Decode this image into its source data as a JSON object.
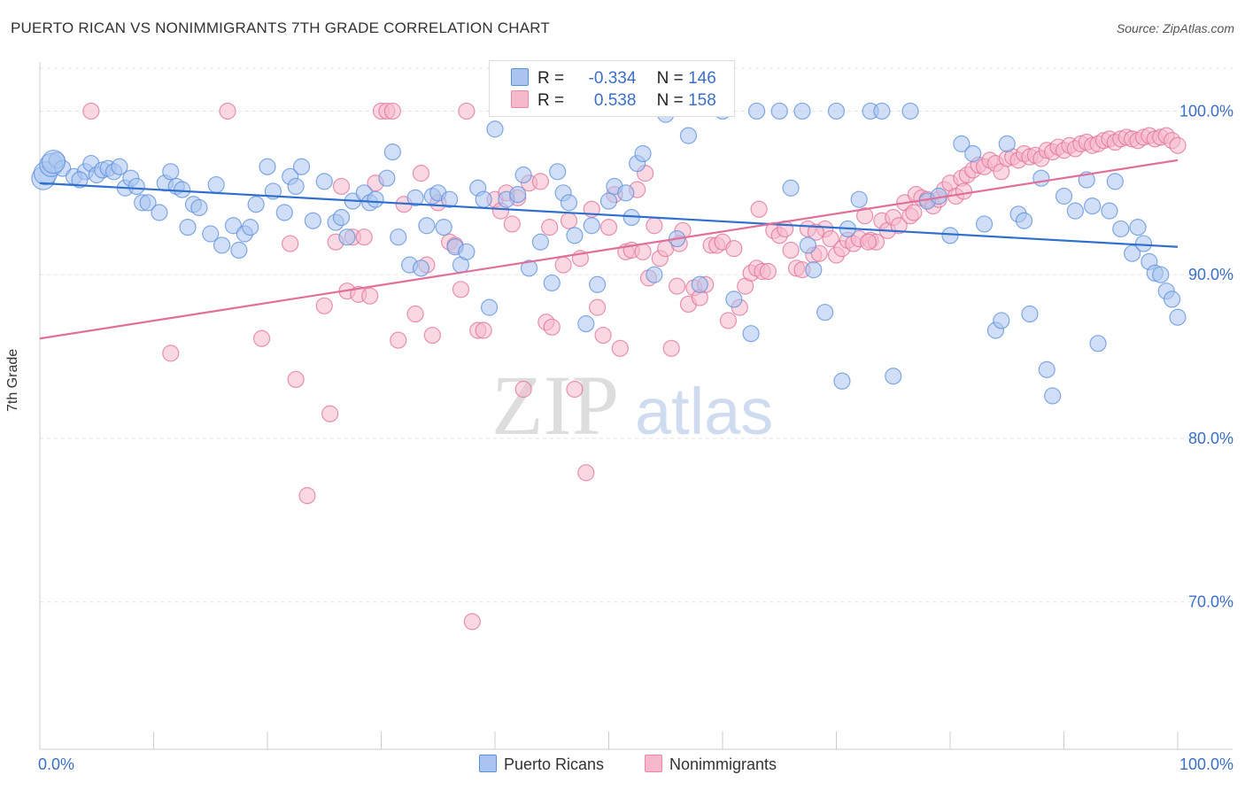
{
  "title": "PUERTO RICAN VS NONIMMIGRANTS 7TH GRADE CORRELATION CHART",
  "source": "Source: ZipAtlas.com",
  "watermark": {
    "zip": "ZIP",
    "atlas": "atlas"
  },
  "legend": {
    "r_label": "R =",
    "n_label": "N =",
    "series": [
      {
        "r": "-0.334",
        "n": "146",
        "color": "#a9c4f0",
        "border": "#5b8fd9"
      },
      {
        "r": "0.538",
        "n": "158",
        "color": "#f6b8cb",
        "border": "#e687a7"
      }
    ]
  },
  "bottom_legend": [
    "Puerto Ricans",
    "Nonimmigrants"
  ],
  "chart_data": {
    "type": "scatter",
    "title": "PUERTO RICAN VS NONIMMIGRANTS 7TH GRADE CORRELATION CHART",
    "xlabel": "",
    "ylabel": "7th Grade",
    "x_tick_labels": [
      "0.0%",
      "100.0%"
    ],
    "y_tick_labels": [
      "100.0%",
      "90.0%",
      "80.0%",
      "70.0%"
    ],
    "y_ticks": [
      100,
      90,
      80,
      70
    ],
    "xlim": [
      0,
      100
    ],
    "ylim": [
      61,
      103
    ],
    "grid": true,
    "legend_placement": "top-center",
    "series": [
      {
        "name": "Puerto Ricans",
        "color": "#5b8fd9",
        "fill": "#a9c4f0",
        "trend": [
          [
            0,
            95.6
          ],
          [
            100,
            91.7
          ]
        ],
        "points": [
          [
            0.3,
            95.9
          ],
          [
            0.5,
            96.2
          ],
          [
            1.0,
            96.7
          ],
          [
            1.5,
            97.0
          ],
          [
            2.0,
            96.5
          ],
          [
            3.0,
            96.0
          ],
          [
            4.0,
            96.3
          ],
          [
            4.5,
            96.8
          ],
          [
            5.0,
            96.1
          ],
          [
            5.5,
            96.4
          ],
          [
            6.0,
            96.5
          ],
          [
            6.5,
            96.3
          ],
          [
            7.0,
            96.6
          ],
          [
            7.5,
            95.3
          ],
          [
            8.0,
            95.9
          ],
          [
            8.5,
            95.4
          ],
          [
            9.0,
            94.4
          ],
          [
            9.5,
            94.4
          ],
          [
            10.5,
            93.8
          ],
          [
            11.0,
            95.6
          ],
          [
            11.5,
            96.3
          ],
          [
            12.0,
            95.4
          ],
          [
            12.5,
            95.2
          ],
          [
            13.5,
            94.3
          ],
          [
            14.0,
            94.1
          ],
          [
            15.0,
            92.5
          ],
          [
            15.5,
            95.5
          ],
          [
            16.0,
            91.8
          ],
          [
            17.0,
            93.0
          ],
          [
            17.5,
            91.5
          ],
          [
            18.0,
            92.5
          ],
          [
            18.5,
            92.9
          ],
          [
            19.0,
            94.3
          ],
          [
            20.0,
            96.6
          ],
          [
            20.5,
            95.1
          ],
          [
            21.5,
            93.8
          ],
          [
            22.0,
            96.0
          ],
          [
            22.5,
            95.4
          ],
          [
            23.0,
            96.6
          ],
          [
            24.0,
            93.3
          ],
          [
            25.0,
            95.7
          ],
          [
            26.0,
            93.2
          ],
          [
            26.5,
            93.5
          ],
          [
            27.0,
            92.3
          ],
          [
            27.5,
            94.5
          ],
          [
            28.5,
            95.0
          ],
          [
            29.0,
            94.4
          ],
          [
            29.5,
            94.6
          ],
          [
            30.5,
            95.9
          ],
          [
            31.0,
            97.5
          ],
          [
            31.5,
            92.3
          ],
          [
            32.5,
            90.6
          ],
          [
            33.0,
            94.7
          ],
          [
            33.5,
            90.4
          ],
          [
            34.0,
            93.0
          ],
          [
            34.5,
            94.8
          ],
          [
            35.0,
            95.0
          ],
          [
            35.5,
            92.9
          ],
          [
            36.5,
            91.7
          ],
          [
            37.0,
            90.6
          ],
          [
            37.5,
            91.4
          ],
          [
            38.5,
            95.3
          ],
          [
            39.0,
            94.6
          ],
          [
            39.5,
            88.0
          ],
          [
            40.0,
            98.9
          ],
          [
            41.0,
            94.6
          ],
          [
            42.0,
            94.9
          ],
          [
            42.5,
            96.1
          ],
          [
            43.0,
            90.4
          ],
          [
            44.0,
            92.0
          ],
          [
            45.0,
            89.5
          ],
          [
            45.5,
            96.3
          ],
          [
            46.0,
            95.0
          ],
          [
            46.5,
            94.4
          ],
          [
            47.0,
            92.4
          ],
          [
            48.0,
            87.0
          ],
          [
            48.5,
            93.0
          ],
          [
            49.0,
            89.4
          ],
          [
            50.0,
            94.5
          ],
          [
            50.5,
            95.4
          ],
          [
            51.5,
            95.0
          ],
          [
            52.0,
            93.5
          ],
          [
            52.5,
            96.8
          ],
          [
            53.0,
            97.4
          ],
          [
            54.0,
            90.0
          ],
          [
            55.0,
            99.8
          ],
          [
            56.0,
            92.2
          ],
          [
            57.0,
            98.5
          ],
          [
            58.0,
            89.4
          ],
          [
            60.0,
            100.0
          ],
          [
            61.0,
            88.5
          ],
          [
            62.5,
            86.4
          ],
          [
            63.0,
            100.0
          ],
          [
            65.0,
            100.0
          ],
          [
            66.0,
            95.3
          ],
          [
            67.0,
            100.0
          ],
          [
            68.0,
            90.3
          ],
          [
            69.0,
            87.7
          ],
          [
            70.0,
            100.0
          ],
          [
            70.5,
            83.5
          ],
          [
            71.0,
            92.8
          ],
          [
            72.0,
            94.6
          ],
          [
            73.0,
            100.0
          ],
          [
            74.0,
            100.0
          ],
          [
            75.0,
            83.8
          ],
          [
            76.5,
            100.0
          ],
          [
            78.0,
            94.5
          ],
          [
            79.0,
            94.8
          ],
          [
            80.0,
            92.4
          ],
          [
            81.0,
            98.0
          ],
          [
            82.0,
            97.4
          ],
          [
            83.0,
            93.1
          ],
          [
            84.0,
            86.6
          ],
          [
            84.5,
            87.2
          ],
          [
            85.0,
            98.0
          ],
          [
            86.0,
            93.7
          ],
          [
            86.5,
            93.3
          ],
          [
            87.0,
            87.6
          ],
          [
            88.0,
            95.9
          ],
          [
            88.5,
            84.2
          ],
          [
            89.0,
            82.6
          ],
          [
            90.0,
            94.8
          ],
          [
            91.0,
            93.9
          ],
          [
            92.0,
            95.8
          ],
          [
            92.5,
            94.2
          ],
          [
            93.0,
            85.8
          ],
          [
            94.0,
            93.9
          ],
          [
            94.5,
            95.7
          ],
          [
            95.0,
            92.8
          ],
          [
            96.0,
            91.3
          ],
          [
            96.5,
            92.9
          ],
          [
            97.0,
            91.9
          ],
          [
            97.5,
            90.8
          ],
          [
            98.0,
            90.1
          ],
          [
            98.5,
            90.0
          ],
          [
            99.0,
            89.0
          ],
          [
            99.5,
            88.5
          ],
          [
            100.0,
            87.4
          ],
          [
            1.2,
            96.9
          ],
          [
            3.5,
            95.8
          ],
          [
            13.0,
            92.9
          ],
          [
            36.0,
            94.6
          ],
          [
            67.5,
            91.8
          ]
        ]
      },
      {
        "name": "Nonimmigrants",
        "color": "#e0709a",
        "fill": "#f6b8cb",
        "trend": [
          [
            0,
            86.1
          ],
          [
            100,
            97.0
          ]
        ],
        "points": [
          [
            4.5,
            100.0
          ],
          [
            11.5,
            85.2
          ],
          [
            16.5,
            100.0
          ],
          [
            19.5,
            86.1
          ],
          [
            22.0,
            91.9
          ],
          [
            22.5,
            83.6
          ],
          [
            23.5,
            76.5
          ],
          [
            25.0,
            88.1
          ],
          [
            25.5,
            81.5
          ],
          [
            26.0,
            92.0
          ],
          [
            27.0,
            89.0
          ],
          [
            27.5,
            92.3
          ],
          [
            28.0,
            88.8
          ],
          [
            28.5,
            92.3
          ],
          [
            29.0,
            88.7
          ],
          [
            29.5,
            95.6
          ],
          [
            30.0,
            100.0
          ],
          [
            30.5,
            100.0
          ],
          [
            31.0,
            100.0
          ],
          [
            32.0,
            94.3
          ],
          [
            33.0,
            87.6
          ],
          [
            33.5,
            96.2
          ],
          [
            34.0,
            90.6
          ],
          [
            34.5,
            86.3
          ],
          [
            35.0,
            94.4
          ],
          [
            36.0,
            92.0
          ],
          [
            36.5,
            91.8
          ],
          [
            37.0,
            89.1
          ],
          [
            37.5,
            100.0
          ],
          [
            38.0,
            68.8
          ],
          [
            38.5,
            86.6
          ],
          [
            39.0,
            86.6
          ],
          [
            40.0,
            94.6
          ],
          [
            40.5,
            93.9
          ],
          [
            41.0,
            95.0
          ],
          [
            41.5,
            93.1
          ],
          [
            42.0,
            94.7
          ],
          [
            42.5,
            83.0
          ],
          [
            43.0,
            95.6
          ],
          [
            44.0,
            95.7
          ],
          [
            44.5,
            87.1
          ],
          [
            45.0,
            86.8
          ],
          [
            46.0,
            90.6
          ],
          [
            46.5,
            93.3
          ],
          [
            47.0,
            83.0
          ],
          [
            47.5,
            91.0
          ],
          [
            48.0,
            77.9
          ],
          [
            48.5,
            94.0
          ],
          [
            49.0,
            88.0
          ],
          [
            49.5,
            86.3
          ],
          [
            50.0,
            92.9
          ],
          [
            50.5,
            94.9
          ],
          [
            51.0,
            85.5
          ],
          [
            51.5,
            91.4
          ],
          [
            52.0,
            91.5
          ],
          [
            52.5,
            95.2
          ],
          [
            53.0,
            91.4
          ],
          [
            53.5,
            89.8
          ],
          [
            54.0,
            93.0
          ],
          [
            54.5,
            91.0
          ],
          [
            55.0,
            91.6
          ],
          [
            55.5,
            85.5
          ],
          [
            56.0,
            89.3
          ],
          [
            56.5,
            92.7
          ],
          [
            57.0,
            88.2
          ],
          [
            57.5,
            89.2
          ],
          [
            58.0,
            88.6
          ],
          [
            58.5,
            89.4
          ],
          [
            59.0,
            91.8
          ],
          [
            59.5,
            91.8
          ],
          [
            60.0,
            92.0
          ],
          [
            60.5,
            87.2
          ],
          [
            61.0,
            91.6
          ],
          [
            61.5,
            88.0
          ],
          [
            62.0,
            89.3
          ],
          [
            62.5,
            90.1
          ],
          [
            63.0,
            90.4
          ],
          [
            63.5,
            90.2
          ],
          [
            64.0,
            90.2
          ],
          [
            64.5,
            92.7
          ],
          [
            65.0,
            92.4
          ],
          [
            65.5,
            92.8
          ],
          [
            66.0,
            91.5
          ],
          [
            66.5,
            90.4
          ],
          [
            67.0,
            90.3
          ],
          [
            67.5,
            92.8
          ],
          [
            68.0,
            91.2
          ],
          [
            68.5,
            91.3
          ],
          [
            69.0,
            92.8
          ],
          [
            69.5,
            92.2
          ],
          [
            70.0,
            91.2
          ],
          [
            70.5,
            91.6
          ],
          [
            71.0,
            92.1
          ],
          [
            71.5,
            91.9
          ],
          [
            72.0,
            92.2
          ],
          [
            72.5,
            93.6
          ],
          [
            73.0,
            92.1
          ],
          [
            73.5,
            92.0
          ],
          [
            74.0,
            93.3
          ],
          [
            74.5,
            92.7
          ],
          [
            75.0,
            93.5
          ],
          [
            75.5,
            93.0
          ],
          [
            76.0,
            94.4
          ],
          [
            76.5,
            93.6
          ],
          [
            77.0,
            94.9
          ],
          [
            77.5,
            94.7
          ],
          [
            78.0,
            94.6
          ],
          [
            78.5,
            94.2
          ],
          [
            79.0,
            94.6
          ],
          [
            79.5,
            95.2
          ],
          [
            80.0,
            95.6
          ],
          [
            80.5,
            94.8
          ],
          [
            81.0,
            95.9
          ],
          [
            81.5,
            96.1
          ],
          [
            82.0,
            96.4
          ],
          [
            82.5,
            96.7
          ],
          [
            83.0,
            96.6
          ],
          [
            83.5,
            97.0
          ],
          [
            84.0,
            96.8
          ],
          [
            84.5,
            96.3
          ],
          [
            85.0,
            97.1
          ],
          [
            85.5,
            97.2
          ],
          [
            86.0,
            97.0
          ],
          [
            86.5,
            97.4
          ],
          [
            87.0,
            97.2
          ],
          [
            87.5,
            97.3
          ],
          [
            88.0,
            97.1
          ],
          [
            88.5,
            97.6
          ],
          [
            89.0,
            97.5
          ],
          [
            89.5,
            97.8
          ],
          [
            90.0,
            97.6
          ],
          [
            90.5,
            97.9
          ],
          [
            91.0,
            97.7
          ],
          [
            91.5,
            98.0
          ],
          [
            92.0,
            98.1
          ],
          [
            92.5,
            97.9
          ],
          [
            93.0,
            98.0
          ],
          [
            93.5,
            98.2
          ],
          [
            94.0,
            98.3
          ],
          [
            94.5,
            98.1
          ],
          [
            95.0,
            98.3
          ],
          [
            95.5,
            98.4
          ],
          [
            96.0,
            98.3
          ],
          [
            96.5,
            98.2
          ],
          [
            97.0,
            98.4
          ],
          [
            97.5,
            98.5
          ],
          [
            98.0,
            98.3
          ],
          [
            98.5,
            98.4
          ],
          [
            99.0,
            98.5
          ],
          [
            99.5,
            98.2
          ],
          [
            100.0,
            97.9
          ],
          [
            26.5,
            95.4
          ],
          [
            31.5,
            86.0
          ],
          [
            44.8,
            92.9
          ],
          [
            53.2,
            96.2
          ],
          [
            72.8,
            92.0
          ],
          [
            81.2,
            95.1
          ],
          [
            76.8,
            93.8
          ],
          [
            56.2,
            91.9
          ],
          [
            63.2,
            94.0
          ],
          [
            68.2,
            92.6
          ]
        ]
      }
    ]
  }
}
